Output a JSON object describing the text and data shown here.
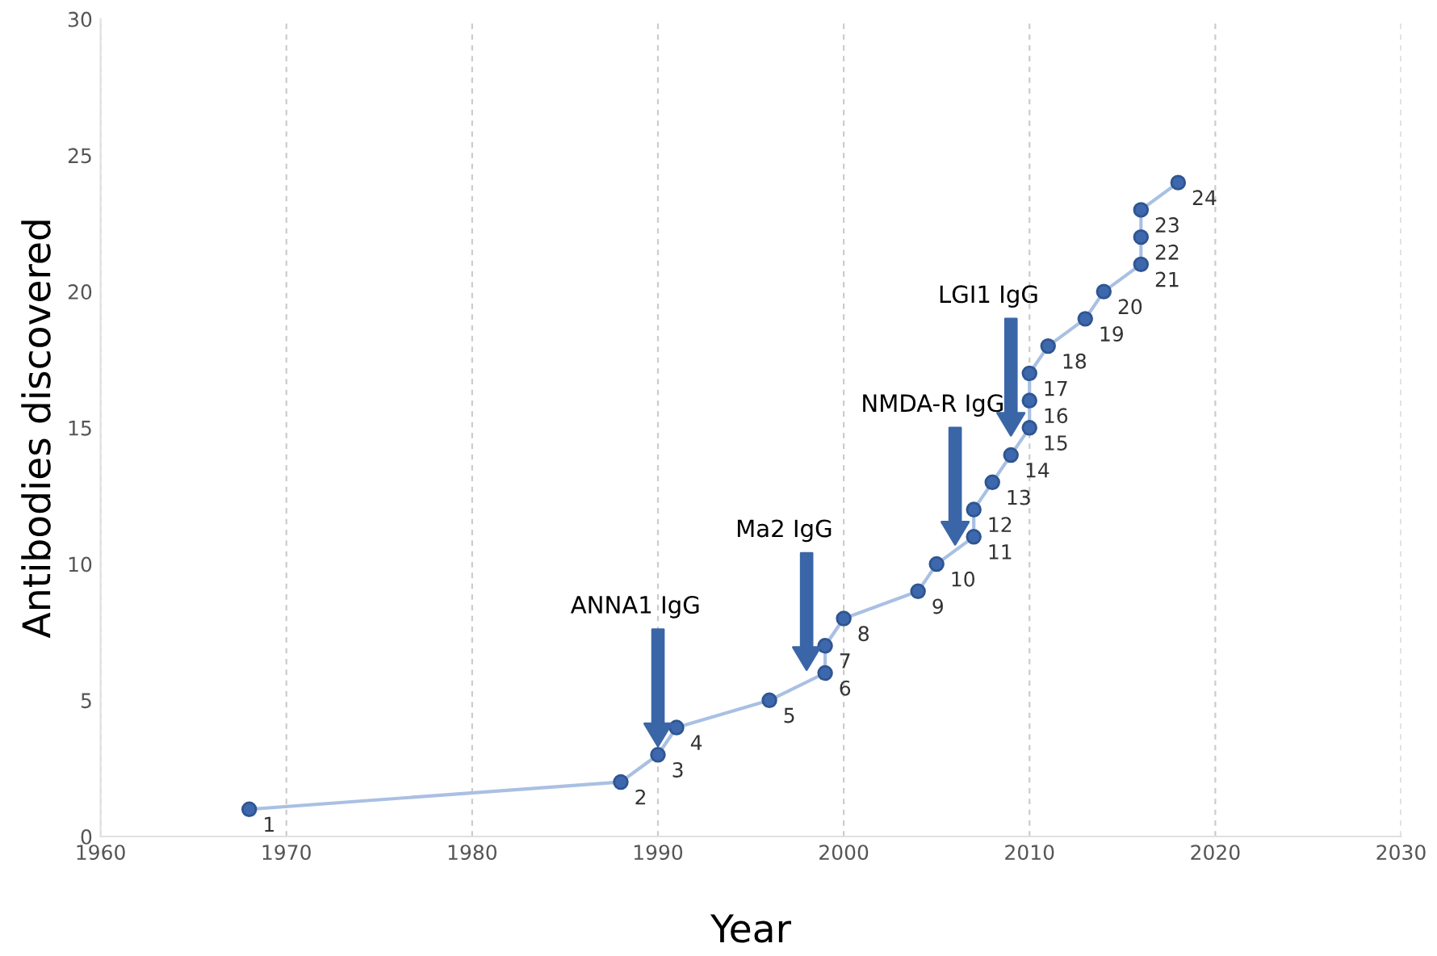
{
  "chart_data": {
    "type": "line",
    "xlabel": "Year",
    "ylabel": "Antibodies discovered",
    "x": [
      1968,
      1988,
      1990,
      1991,
      1996,
      1999,
      1999,
      2000,
      2004,
      2005,
      2007,
      2007,
      2008,
      2009,
      2010,
      2010,
      2010,
      2011,
      2013,
      2014,
      2016,
      2016,
      2016,
      2018
    ],
    "series": [
      {
        "color": "#3d68ad",
        "values": [
          1,
          2,
          3,
          4,
          5,
          6,
          7,
          8,
          9,
          10,
          11,
          12,
          13,
          14,
          15,
          16,
          17,
          18,
          19,
          20,
          21,
          22,
          23,
          24
        ]
      }
    ],
    "xlim": [
      1960,
      2030
    ],
    "xticks": [
      1960,
      1970,
      1980,
      1990,
      2000,
      2010,
      2020,
      2030
    ],
    "ylim": [
      0,
      30
    ],
    "yticks": [
      0,
      5,
      10,
      15,
      20,
      25,
      30
    ],
    "grid": "x",
    "marker": "circle",
    "line_style": "solid",
    "data_labels": true,
    "annotations": [
      "ANNA1 IgG",
      "Ma2 IgG",
      "NMDA-R IgG",
      "LGI1 IgG"
    ]
  }
}
